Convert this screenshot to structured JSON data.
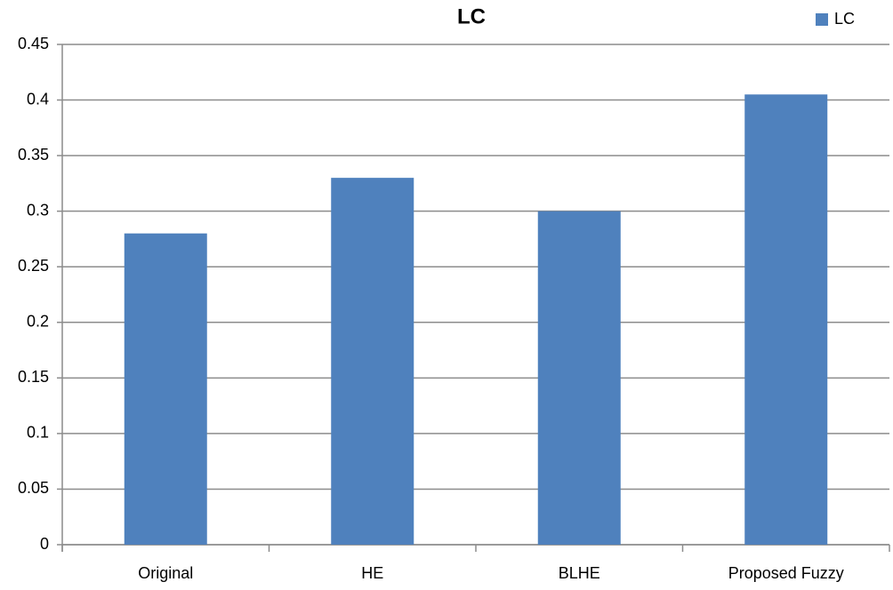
{
  "chart_data": {
    "type": "bar",
    "title": "LC",
    "categories": [
      "Original",
      "HE",
      "BLHE",
      "Proposed Fuzzy"
    ],
    "series": [
      {
        "name": "LC",
        "color": "#4f81bd",
        "values": [
          0.28,
          0.33,
          0.3,
          0.405
        ]
      }
    ],
    "ylim": [
      0,
      0.45
    ],
    "yticks": [
      0,
      0.05,
      0.1,
      0.15,
      0.2,
      0.25,
      0.3,
      0.35,
      0.4,
      0.45
    ],
    "grid": true,
    "legend": "top-right"
  }
}
